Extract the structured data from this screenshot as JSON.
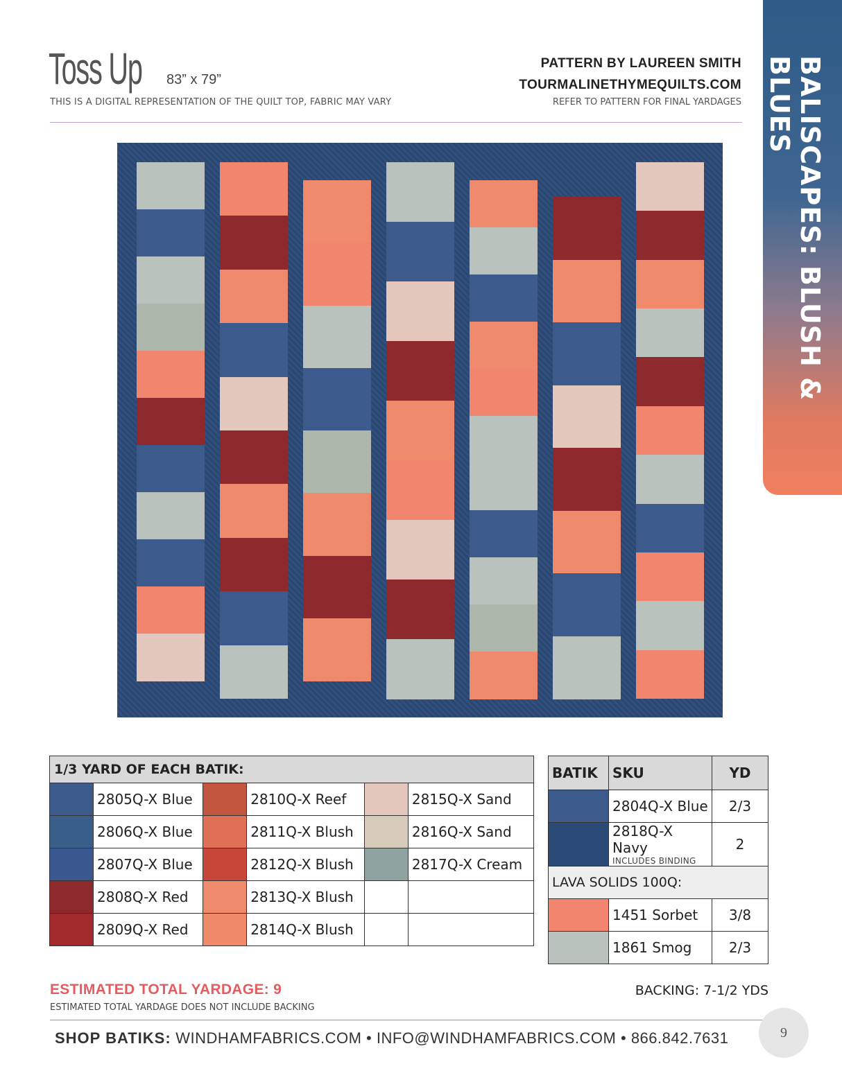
{
  "header": {
    "title": "Toss Up",
    "size": "83” x 79”",
    "disclaimer": "THIS IS A DIGITAL REPRESENTATION OF THE QUILT TOP, FABRIC MAY VARY",
    "byline": "PATTERN BY LAUREEN SMITH",
    "website": "TOURMALINETHYMEQUILTS.COM",
    "refer": "REFER TO PATTERN FOR FINAL YARDAGES"
  },
  "side_tab": {
    "text": "BALISCAPES: BLUSH & BLUES"
  },
  "colors": {
    "navy": "#2c4a78",
    "smog": "#b9c2bd",
    "sorbet": "#f2856e",
    "blush": "#f08a6c",
    "blue": "#3d5a8c",
    "red": "#8e2a2e",
    "sand": "#e4c7bd",
    "cream": "#aeb7ac"
  },
  "quilt_rows": [
    [
      "smog",
      "blue",
      "smog",
      "cream",
      "sorbet",
      "red",
      "blue",
      "smog",
      "blue",
      "sorbet",
      "sand"
    ],
    [
      "sorbet",
      "red",
      "blush",
      "blue",
      "sand",
      "red",
      "blush",
      "red",
      "blue",
      "smog"
    ],
    [
      "blush",
      "sorbet",
      "smog",
      "blue",
      "cream",
      "blush",
      "red",
      "blush"
    ],
    [
      "smog",
      "blue",
      "sand",
      "red",
      "blush",
      "sorbet",
      "sand",
      "red",
      "smog"
    ],
    [
      "blush",
      "smog",
      "blue",
      "blush",
      "sorbet",
      "smog",
      "smog",
      "blue",
      "smog",
      "cream",
      "blush"
    ],
    [
      "red",
      "blush",
      "blue",
      "sand",
      "red",
      "blush",
      "blue",
      "smog"
    ],
    [
      "sand",
      "red",
      "blush",
      "smog",
      "red",
      "sorbet",
      "smog",
      "blue",
      "sorbet",
      "smog",
      "sorbet"
    ]
  ],
  "batik_table": {
    "header": "1/3 YARD OF EACH BATIK:",
    "rows": [
      [
        "2805Q-X Blue",
        "2810Q-X Reef",
        "2815Q-X Sand"
      ],
      [
        "2806Q-X Blue",
        "2811Q-X Blush",
        "2816Q-X Sand"
      ],
      [
        "2807Q-X Blue",
        "2812Q-X Blush",
        "2817Q-X Cream"
      ],
      [
        "2808Q-X Red",
        "2813Q-X Blush",
        ""
      ],
      [
        "2809Q-X Red",
        "2814Q-X Blush",
        ""
      ]
    ]
  },
  "side_table": {
    "col_batik": "BATIK",
    "col_sku": "SKU",
    "col_yd": "YD",
    "row1_sku": "2804Q-X Blue",
    "row1_yd": "2/3",
    "row2_sku": "2818Q-X Navy",
    "row2_note": "INCLUDES BINDING",
    "row2_yd": "2",
    "lava_header": "LAVA SOLIDS 100Q:",
    "row3_sku": "1451 Sorbet",
    "row3_yd": "3/8",
    "row4_sku": "1861 Smog",
    "row4_yd": "2/3"
  },
  "estimate": {
    "total": "ESTIMATED TOTAL YARDAGE: 9",
    "note": "ESTIMATED TOTAL YARDAGE DOES NOT INCLUDE BACKING",
    "backing": "BACKING: 7-1/2 YDS"
  },
  "footer": {
    "shop": "SHOP BATIKS:",
    "website": "WINDHAMFABRICS.COM",
    "email": "INFO@WINDHAMFABRICS.COM",
    "phone": "866.842.7631",
    "bullet": "•",
    "page": "9"
  }
}
